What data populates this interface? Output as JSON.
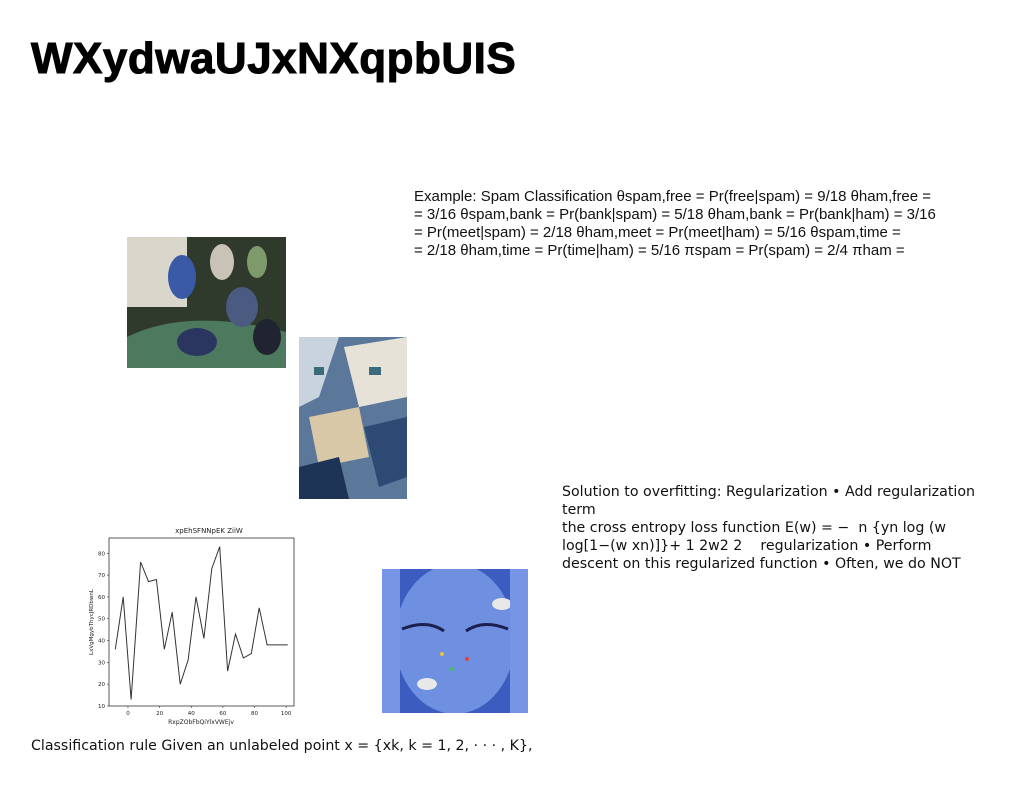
{
  "slide": {
    "title": "WXydwaUJxNXqpbUIS",
    "spam_example": [
      "Example: Spam Classification θspam,free = Pr(free|spam) = 9/18 θham,free =",
      "= 3/16 θspam,bank = Pr(bank|spam) = 5/18 θham,bank = Pr(bank|ham) = 3/16",
      "= Pr(meet|spam) = 2/18 θham,meet = Pr(meet|ham) = 5/16 θspam,time =",
      "= 2/18 θham,time = Pr(time|ham) = 5/16 πspam = Pr(spam) = 2/4 πham ="
    ],
    "regularization": [
      "Solution to overfitting: Regularization • Add regularization term",
      "the cross entropy loss function E(w) = − ￼ n {yn log ￼(w",
      "log[1−￼(w ￼xn)]}+ 1 2￼￼w￼2 2 ￼ ￼￼ ￼ regularization • Perform",
      "descent on this regularized function • Often, we do NOT"
    ],
    "classification_rule": "Classification rule Given an unlabeled point x = {xk, k = 1, 2, · · · , K},"
  },
  "chart_data": {
    "type": "line",
    "title": "xpEhSFNNpEK ZiiW",
    "xlabel": "RxpZObFbQiYlxVWEjv",
    "ylabel": "LxVgMgybThycJRDbwnL",
    "xlim": [
      -12,
      105
    ],
    "ylim": [
      10,
      87
    ],
    "xticks": [
      "0",
      "20",
      "40",
      "60",
      "80",
      "100"
    ],
    "yticks": [
      "10",
      "20",
      "30",
      "40",
      "50",
      "60",
      "70",
      "80"
    ],
    "series": [
      {
        "color": "#333333",
        "x": [
          -8,
          -3,
          2,
          8,
          13,
          18,
          23,
          28,
          33,
          38,
          43,
          48,
          53,
          58,
          63,
          68,
          73,
          78,
          83,
          88,
          93,
          98,
          101
        ],
        "y": [
          36,
          60,
          13,
          76,
          67,
          68,
          36,
          53,
          20,
          31,
          60,
          41,
          73,
          83,
          26,
          43,
          32,
          34,
          55,
          38,
          38,
          38,
          38
        ]
      }
    ]
  }
}
